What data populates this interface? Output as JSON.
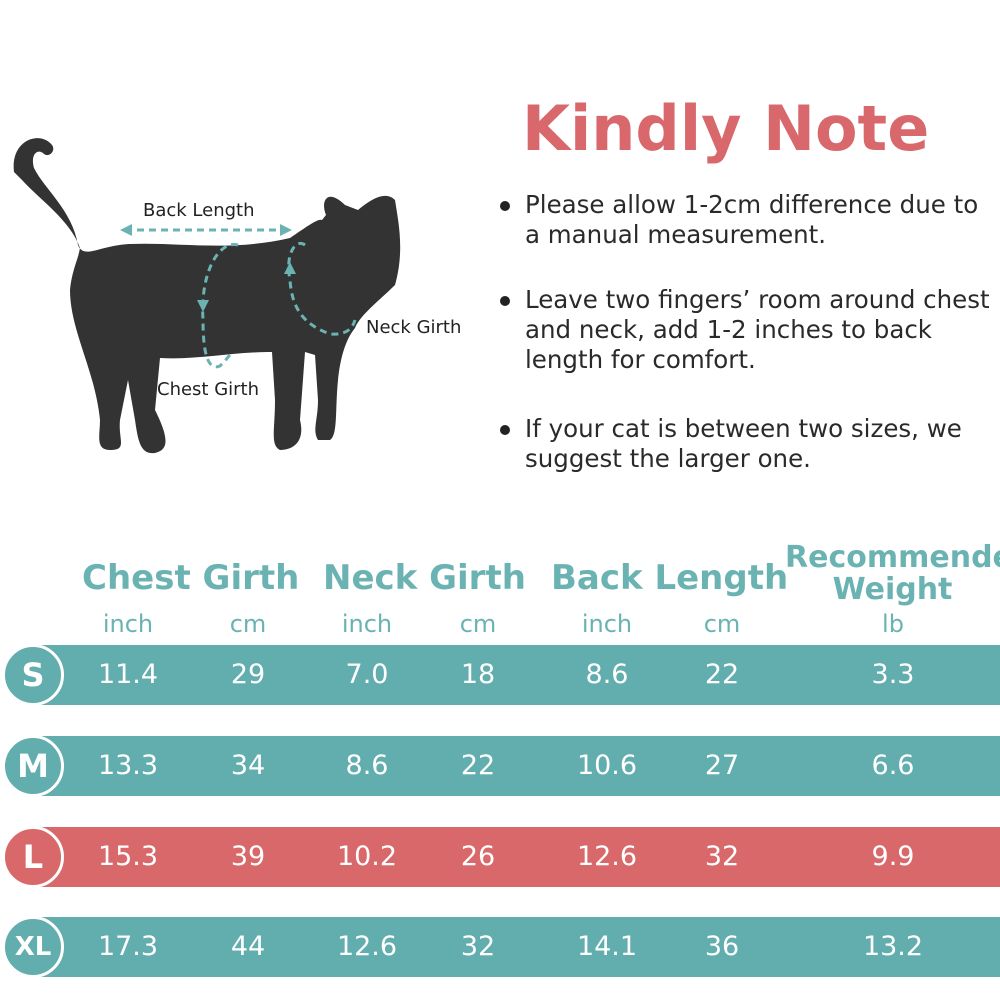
{
  "diagram": {
    "back_length": "Back Length",
    "neck_girth": "Neck Girth",
    "chest_girth": "Chest Girth"
  },
  "title": "Kindly Note",
  "notes": [
    "Please allow 1-2cm difference due to a manual measurement.",
    "Leave two fingers’ room around chest and neck, add 1-2 inches to back length for comfort.",
    "If your cat is between two sizes, we suggest the larger one."
  ],
  "table": {
    "headers": [
      "Chest Girth",
      "Neck Girth",
      "Back Length",
      "Recommended Weight"
    ],
    "units": [
      "inch",
      "cm",
      "inch",
      "cm",
      "inch",
      "cm",
      "lb"
    ],
    "rows": [
      {
        "size": "S",
        "values": [
          "11.4",
          "29",
          "7.0",
          "18",
          "8.6",
          "22",
          "3.3"
        ],
        "color": "#62adad"
      },
      {
        "size": "M",
        "values": [
          "13.3",
          "34",
          "8.6",
          "22",
          "10.6",
          "27",
          "6.6"
        ],
        "color": "#62adad"
      },
      {
        "size": "L",
        "values": [
          "15.3",
          "39",
          "10.2",
          "26",
          "12.6",
          "32",
          "9.9"
        ],
        "color": "#d9686a"
      },
      {
        "size": "XL",
        "values": [
          "17.3",
          "44",
          "12.6",
          "32",
          "14.1",
          "36",
          "13.2"
        ],
        "color": "#62adad"
      }
    ]
  },
  "colors": {
    "teal": "#62adad",
    "red": "#d9686a",
    "heading_teal": "#6bb3b3"
  }
}
